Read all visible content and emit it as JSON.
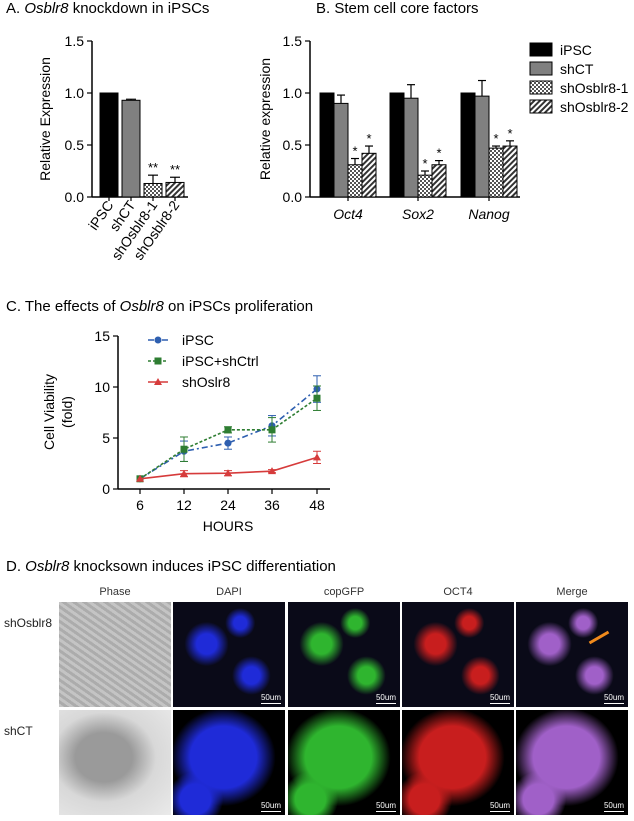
{
  "panelA": {
    "prefix": "A. ",
    "gene": "Osblr8",
    "rest": " knockdown in iPSCs"
  },
  "panelB": {
    "title": "B. Stem cell core factors"
  },
  "panelC": {
    "prefix": "C. The effects of ",
    "gene": "Osblr8",
    "rest": " on iPSCs proliferation"
  },
  "panelD": {
    "prefix": "D. ",
    "gene": "Osblr8",
    "rest": " knocksown induces iPSC differentiation"
  },
  "microscopy": {
    "columns": [
      "Phase",
      "DAPI",
      "copGFP",
      "OCT4",
      "Merge"
    ],
    "rows": [
      "shOsblr8",
      "shCT"
    ],
    "scale_bar": "50um",
    "colors": {
      "Phase": "#b8b8b8",
      "DAPI": "#1f2bd8",
      "copGFP": "#2fb52f",
      "OCT4": "#c81e1e",
      "Merge": "#a060c8"
    }
  },
  "chart_data": [
    {
      "type": "bar",
      "ylabel": "Relative Expression",
      "ylim": [
        0,
        1.5
      ],
      "yticks": [
        "0.0",
        "0.5",
        "1.0",
        "1.5"
      ],
      "categories": [
        "iPSC",
        "shCT",
        "shOsblr8-1",
        "shOsblr8-2"
      ],
      "values": [
        1.0,
        0.93,
        0.13,
        0.14
      ],
      "errors": [
        0,
        0.01,
        0.08,
        0.05
      ],
      "significance": [
        "",
        "",
        "**",
        "**"
      ],
      "colors": [
        "#000000",
        "#808080",
        "#ffffff",
        "#ffffff"
      ],
      "patterns": [
        "solid",
        "solid",
        "checker",
        "diagonal"
      ]
    },
    {
      "type": "bar",
      "ylabel": "Relative expression",
      "ylim": [
        0,
        1.5
      ],
      "yticks": [
        "0.0",
        "0.5",
        "1.0",
        "1.5"
      ],
      "categories": [
        "Oct4",
        "Sox2",
        "Nanog"
      ],
      "legend": [
        "iPSC",
        "shCT",
        "shOsblr8-1",
        "shOsblr8-2"
      ],
      "legend_position": "right",
      "series": [
        {
          "name": "iPSC",
          "values": [
            1.0,
            1.0,
            1.0
          ],
          "errors": [
            0,
            0,
            0
          ],
          "significance": [
            "",
            "",
            ""
          ],
          "pattern": "solid",
          "color": "#000000"
        },
        {
          "name": "shCT",
          "values": [
            0.9,
            0.95,
            0.97
          ],
          "errors": [
            0.08,
            0.13,
            0.15
          ],
          "significance": [
            "",
            "",
            ""
          ],
          "pattern": "solid",
          "color": "#808080"
        },
        {
          "name": "shOsblr8-1",
          "values": [
            0.31,
            0.21,
            0.47
          ],
          "errors": [
            0.06,
            0.04,
            0.02
          ],
          "significance": [
            "*",
            "*",
            "*"
          ],
          "pattern": "checker",
          "color": "#ffffff"
        },
        {
          "name": "shOsblr8-2",
          "values": [
            0.42,
            0.31,
            0.49
          ],
          "errors": [
            0.07,
            0.04,
            0.05
          ],
          "significance": [
            "*",
            "*",
            "*"
          ],
          "pattern": "diagonal",
          "color": "#ffffff"
        }
      ]
    },
    {
      "type": "line",
      "xlabel": "HOURS",
      "ylabel": [
        "Cell Viability",
        "(fold)"
      ],
      "x": [
        6,
        12,
        24,
        36,
        48
      ],
      "xlim": [
        6,
        48
      ],
      "ylim": [
        0,
        15
      ],
      "yticks": [
        0,
        5,
        10,
        15
      ],
      "legend_position": "top-left",
      "series": [
        {
          "name": "iPSC",
          "values": [
            1.0,
            3.7,
            4.5,
            6.2,
            9.8
          ],
          "errors": [
            0,
            1.0,
            0.6,
            1.0,
            1.3
          ],
          "color": "#2e5fb0",
          "marker": "circle",
          "dash": "dashdot"
        },
        {
          "name": "iPSC+shCtrl",
          "values": [
            1.0,
            3.9,
            5.8,
            5.8,
            8.9
          ],
          "errors": [
            0,
            1.2,
            0.3,
            1.2,
            1.2
          ],
          "color": "#2e7d32",
          "marker": "square",
          "dash": "dotted"
        },
        {
          "name": "shOslr8",
          "values": [
            1.0,
            1.5,
            1.55,
            1.75,
            3.1
          ],
          "errors": [
            0,
            0.3,
            0.25,
            0.15,
            0.6
          ],
          "color": "#d63b3b",
          "marker": "triangle",
          "dash": "solid"
        }
      ]
    }
  ]
}
